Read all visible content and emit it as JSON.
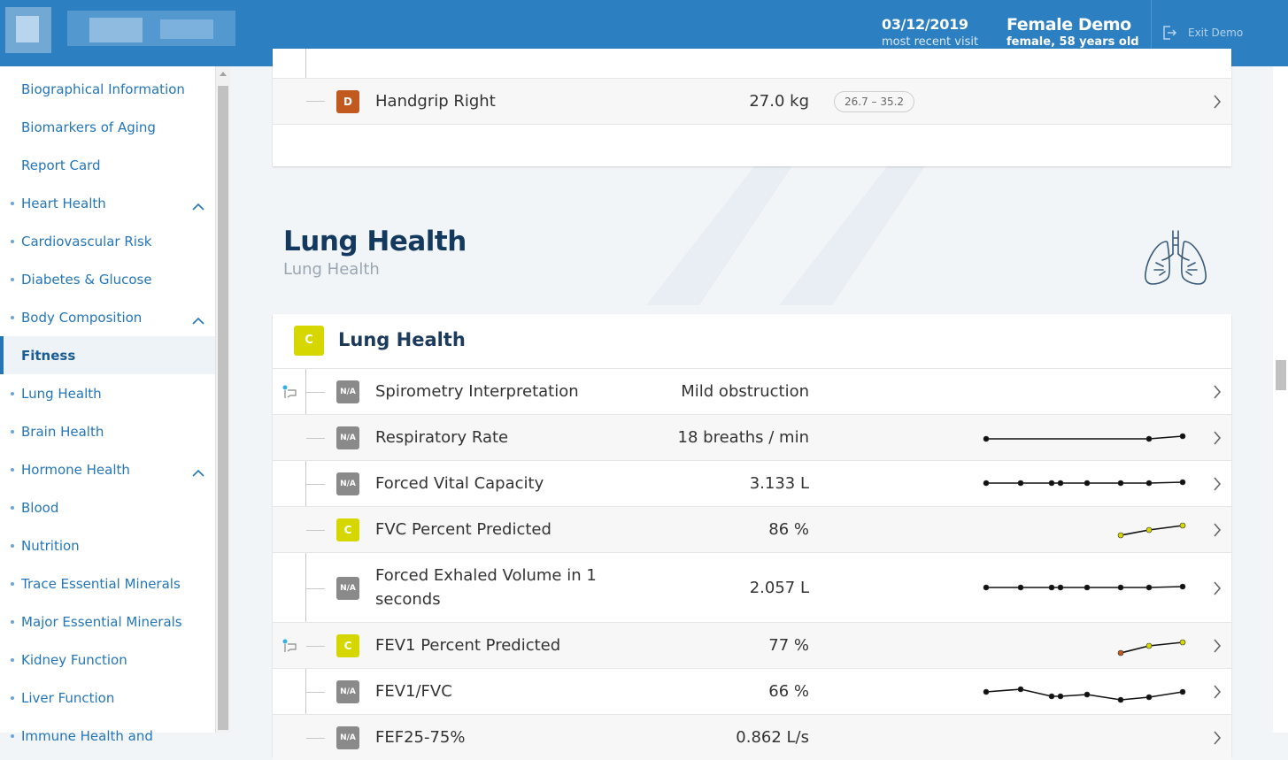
{
  "header": {
    "visit_date": "03/12/2019",
    "visit_label": "most recent visit",
    "patient_name": "Female Demo",
    "patient_info": "female, 58 years old",
    "exit_label": "Exit Demo"
  },
  "sidebar": {
    "items": [
      {
        "label": "Biographical Information",
        "dot": false,
        "expandable": false,
        "active": false
      },
      {
        "label": "Biomarkers of Aging",
        "dot": false,
        "expandable": false,
        "active": false
      },
      {
        "label": "Report Card",
        "dot": false,
        "expandable": false,
        "active": false
      },
      {
        "label": "Heart Health",
        "dot": true,
        "expandable": true,
        "active": false
      },
      {
        "label": "Cardiovascular Risk",
        "dot": true,
        "expandable": false,
        "active": false
      },
      {
        "label": "Diabetes & Glucose",
        "dot": true,
        "expandable": false,
        "active": false
      },
      {
        "label": "Body Composition",
        "dot": true,
        "expandable": true,
        "active": false
      },
      {
        "label": "Fitness",
        "dot": false,
        "expandable": false,
        "active": true
      },
      {
        "label": "Lung Health",
        "dot": true,
        "expandable": false,
        "active": false
      },
      {
        "label": "Brain Health",
        "dot": true,
        "expandable": false,
        "active": false
      },
      {
        "label": "Hormone Health",
        "dot": true,
        "expandable": true,
        "active": false
      },
      {
        "label": "Blood",
        "dot": true,
        "expandable": false,
        "active": false
      },
      {
        "label": "Nutrition",
        "dot": true,
        "expandable": false,
        "active": false
      },
      {
        "label": "Trace Essential Minerals",
        "dot": true,
        "expandable": false,
        "active": false
      },
      {
        "label": "Major Essential Minerals",
        "dot": true,
        "expandable": false,
        "active": false
      },
      {
        "label": "Kidney Function",
        "dot": true,
        "expandable": false,
        "active": false
      },
      {
        "label": "Liver Function",
        "dot": true,
        "expandable": false,
        "active": false
      },
      {
        "label": "Immune Health and",
        "dot": true,
        "expandable": false,
        "active": false
      }
    ]
  },
  "fitness_card": {
    "row": {
      "badge": "D",
      "name": "Handgrip Right",
      "value": "27.0 kg",
      "range": "26.7 – 35.2"
    }
  },
  "lung_section": {
    "title": "Lung Health",
    "subtitle": "Lung Health",
    "icon": "lungs-icon",
    "card_badge": "C",
    "card_title": "Lung Health",
    "rows": [
      {
        "badge": "N/A",
        "grade": "na",
        "name": "Spirometry Interpretation",
        "value": "Mild obstruction",
        "flag": true,
        "alt": false
      },
      {
        "badge": "N/A",
        "grade": "na",
        "name": "Respiratory Rate",
        "value": "18 breaths / min",
        "flag": false,
        "alt": true
      },
      {
        "badge": "N/A",
        "grade": "na",
        "name": "Forced Vital Capacity",
        "value": "3.133 L",
        "flag": false,
        "alt": false
      },
      {
        "badge": "C",
        "grade": "c",
        "name": "FVC Percent Predicted",
        "value": "86 %",
        "flag": false,
        "alt": true
      },
      {
        "badge": "N/A",
        "grade": "na",
        "name": "Forced Exhaled Volume in 1 seconds",
        "value": "2.057 L",
        "flag": false,
        "alt": false
      },
      {
        "badge": "C",
        "grade": "c",
        "name": "FEV1 Percent Predicted",
        "value": "77 %",
        "flag": true,
        "alt": true
      },
      {
        "badge": "N/A",
        "grade": "na",
        "name": "FEV1/FVC",
        "value": "66 %",
        "flag": false,
        "alt": false
      },
      {
        "badge": "N/A",
        "grade": "na",
        "name": "FEF25-75%",
        "value": "0.862 L/s",
        "flag": false,
        "alt": true
      }
    ]
  },
  "colors": {
    "header": "#2c7fc0",
    "grade_c": "#d6d600",
    "grade_d": "#c25a20",
    "grade_na": "#8a8a8a"
  }
}
